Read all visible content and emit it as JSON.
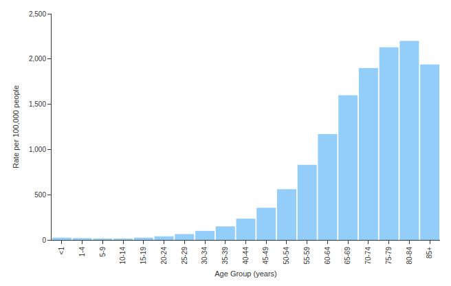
{
  "chart_data": {
    "type": "bar",
    "x_label": "Age Group (years)",
    "y_label": "Rate per 100,000 people",
    "categories": [
      "<1",
      "1-4",
      "5-9",
      "10-14",
      "15-19",
      "20-24",
      "25-29",
      "30-34",
      "35-39",
      "40-44",
      "45-49",
      "50-54",
      "55-59",
      "60-64",
      "65-69",
      "70-74",
      "75-79",
      "80-84",
      "85+"
    ],
    "values": [
      25,
      20,
      12,
      15,
      25,
      40,
      65,
      100,
      150,
      235,
      355,
      560,
      830,
      1170,
      1600,
      1900,
      2130,
      2200,
      1940
    ],
    "color": "#93cefa",
    "ylim": [
      0,
      2500
    ],
    "yticks": [
      0,
      500,
      {
        "value": 1000,
        "label": "1,000"
      },
      {
        "value": 1500,
        "label": "1,500"
      },
      {
        "value": 2000,
        "label": "2,000"
      },
      {
        "value": 2500,
        "label": "2,500"
      }
    ],
    "grid": false
  }
}
